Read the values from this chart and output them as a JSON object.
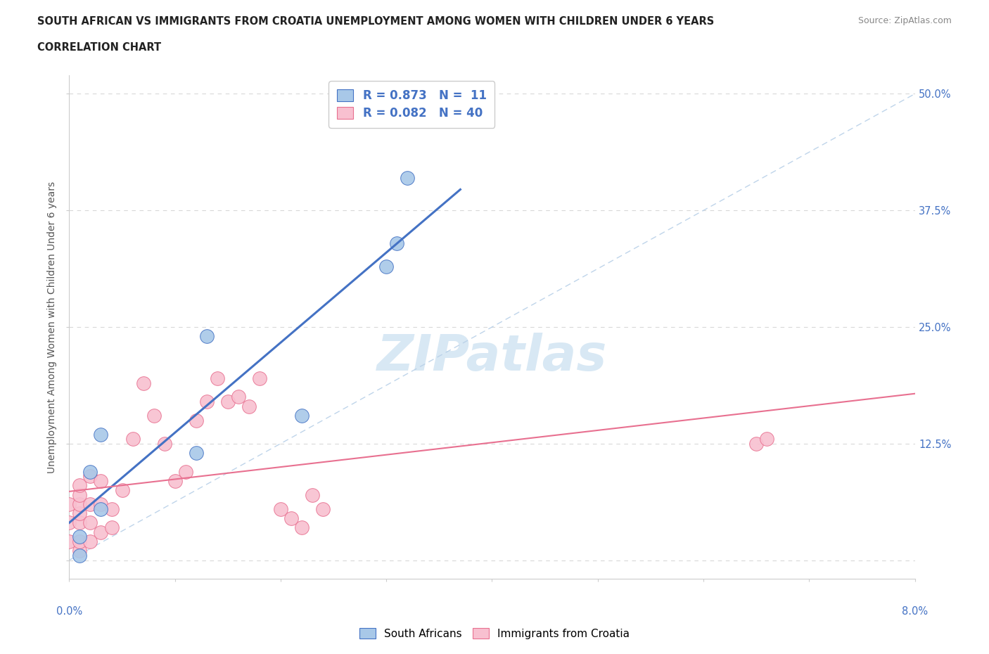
{
  "title_line1": "SOUTH AFRICAN VS IMMIGRANTS FROM CROATIA UNEMPLOYMENT AMONG WOMEN WITH CHILDREN UNDER 6 YEARS",
  "title_line2": "CORRELATION CHART",
  "source": "Source: ZipAtlas.com",
  "ylabel_label": "Unemployment Among Women with Children Under 6 years",
  "right_ytick_vals": [
    0.0,
    0.125,
    0.25,
    0.375,
    0.5
  ],
  "right_ytick_labels": [
    "",
    "12.5%",
    "25.0%",
    "37.5%",
    "50.0%"
  ],
  "legend_blue_R": "0.873",
  "legend_blue_N": "11",
  "legend_pink_R": "0.082",
  "legend_pink_N": "40",
  "legend_label_blue": "South Africans",
  "legend_label_pink": "Immigrants from Croatia",
  "blue_scatter_color": "#a8c8e8",
  "pink_scatter_color": "#f8c0d0",
  "blue_line_color": "#4472c4",
  "pink_line_color": "#e87090",
  "diagonal_color": "#b8d0e8",
  "watermark_color": "#d8e8f4",
  "xlim": [
    0.0,
    0.08
  ],
  "ylim": [
    -0.02,
    0.52
  ],
  "blue_scatter_x": [
    0.001,
    0.001,
    0.002,
    0.003,
    0.003,
    0.012,
    0.013,
    0.022,
    0.03,
    0.031,
    0.032
  ],
  "blue_scatter_y": [
    0.005,
    0.025,
    0.095,
    0.055,
    0.135,
    0.115,
    0.24,
    0.155,
    0.315,
    0.34,
    0.41
  ],
  "pink_scatter_x": [
    0.0,
    0.0,
    0.0,
    0.001,
    0.001,
    0.001,
    0.001,
    0.001,
    0.001,
    0.001,
    0.002,
    0.002,
    0.002,
    0.002,
    0.003,
    0.003,
    0.003,
    0.004,
    0.004,
    0.005,
    0.006,
    0.007,
    0.008,
    0.009,
    0.01,
    0.011,
    0.012,
    0.013,
    0.014,
    0.015,
    0.016,
    0.017,
    0.018,
    0.02,
    0.021,
    0.022,
    0.023,
    0.024,
    0.065,
    0.066
  ],
  "pink_scatter_y": [
    0.02,
    0.04,
    0.06,
    0.01,
    0.02,
    0.04,
    0.05,
    0.06,
    0.07,
    0.08,
    0.02,
    0.04,
    0.06,
    0.09,
    0.03,
    0.06,
    0.085,
    0.035,
    0.055,
    0.075,
    0.13,
    0.19,
    0.155,
    0.125,
    0.085,
    0.095,
    0.15,
    0.17,
    0.195,
    0.17,
    0.175,
    0.165,
    0.195,
    0.055,
    0.045,
    0.035,
    0.07,
    0.055,
    0.125,
    0.13
  ],
  "grid_color": "#d8d8d8",
  "title_color": "#222222",
  "source_color": "#888888",
  "axis_label_color": "#555555",
  "right_axis_color": "#4472c4",
  "bottom_label_color": "#4472c4"
}
